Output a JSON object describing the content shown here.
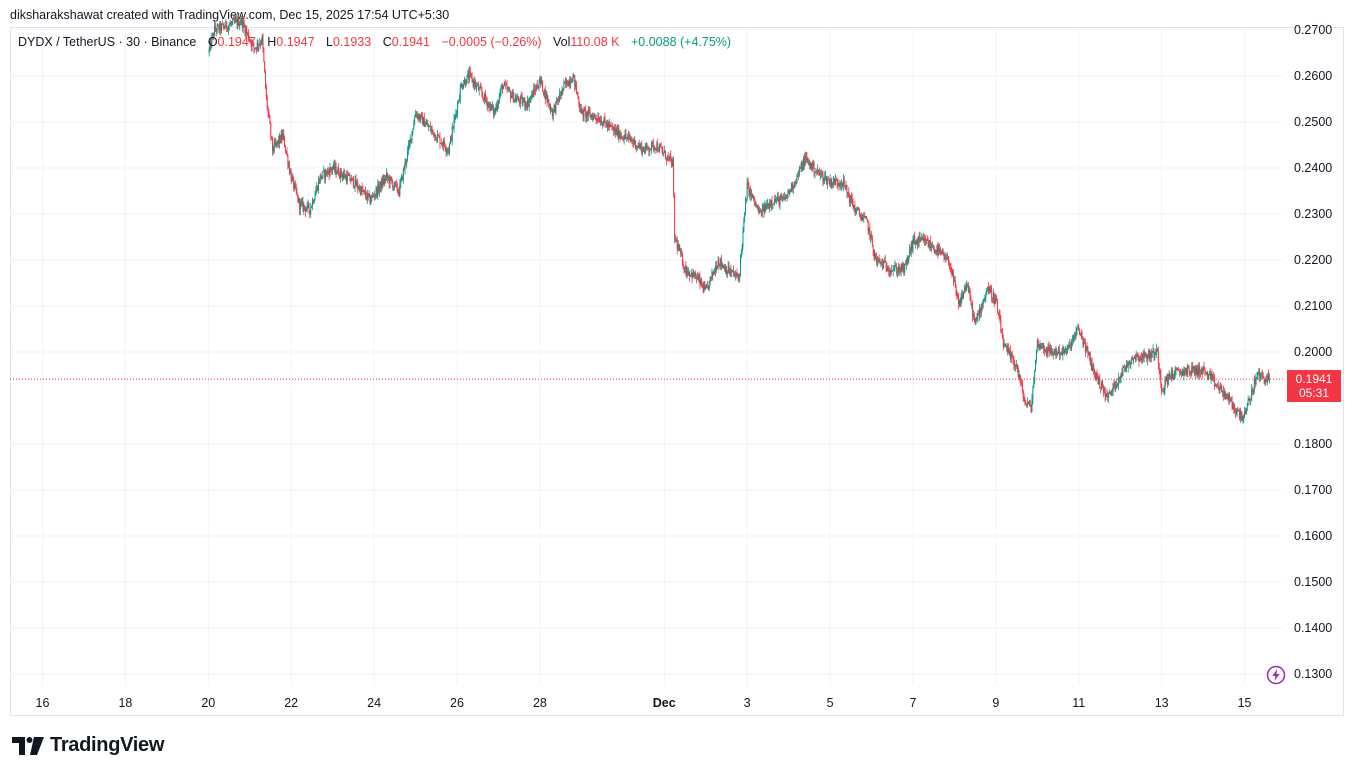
{
  "header": {
    "attribution": "diksharakshawat created with TradingView.com, Dec 15, 2025 17:54 UTC+5:30"
  },
  "legend": {
    "symbol": "DYDX / TetherUS · 30 · Binance",
    "open_label": "O",
    "open_value": "0.1947",
    "high_label": "H",
    "high_value": "0.1947",
    "low_label": "L",
    "low_value": "0.1933",
    "close_label": "C",
    "close_value": "0.1941",
    "change": "−0.0005 (−0.26%)",
    "vol_label": "Vol",
    "vol_value": "110.08 K",
    "vol_change": "+0.0088 (+4.75%)"
  },
  "price_tag": {
    "price": "0.1941",
    "countdown": "05:31"
  },
  "brand": {
    "name": "TradingView"
  },
  "colors": {
    "up": "#089981",
    "down": "#f23645",
    "grid": "#f0f3fa",
    "axis_text": "#131722",
    "last_price_line": "#f23645"
  },
  "chart_data": {
    "type": "candlestick",
    "title": "DYDX / TetherUS · 30 · Binance",
    "xlabel": "",
    "ylabel": "",
    "ylim": [
      0.1265,
      0.272
    ],
    "y_ticks": [
      "0.2700",
      "0.2600",
      "0.2500",
      "0.2400",
      "0.2300",
      "0.2200",
      "0.2100",
      "0.2000",
      "0.1800",
      "0.1700",
      "0.1600",
      "0.1500",
      "0.1400",
      "0.1300"
    ],
    "y_tick_values": [
      0.27,
      0.26,
      0.25,
      0.24,
      0.23,
      0.22,
      0.21,
      0.2,
      0.18,
      0.17,
      0.16,
      0.15,
      0.14,
      0.13
    ],
    "x_ticks": [
      "16",
      "18",
      "20",
      "22",
      "24",
      "26",
      "28",
      "Dec",
      "3",
      "5",
      "7",
      "9",
      "11",
      "13",
      "15"
    ],
    "x_tick_days": [
      0,
      2,
      4,
      6,
      8,
      10,
      12,
      15,
      17,
      19,
      21,
      23,
      25,
      27,
      29
    ],
    "x_range_days": [
      -0.8,
      30.0
    ],
    "last_price": 0.1941,
    "path_anchors_day_price": [
      [
        4.0,
        0.265
      ],
      [
        4.15,
        0.27
      ],
      [
        4.8,
        0.272
      ],
      [
        5.1,
        0.266
      ],
      [
        5.3,
        0.268
      ],
      [
        5.4,
        0.255
      ],
      [
        5.55,
        0.244
      ],
      [
        5.8,
        0.247
      ],
      [
        6.0,
        0.238
      ],
      [
        6.2,
        0.232
      ],
      [
        6.45,
        0.231
      ],
      [
        6.7,
        0.238
      ],
      [
        7.0,
        0.24
      ],
      [
        7.5,
        0.237
      ],
      [
        7.9,
        0.233
      ],
      [
        8.3,
        0.238
      ],
      [
        8.6,
        0.235
      ],
      [
        8.85,
        0.245
      ],
      [
        9.0,
        0.252
      ],
      [
        9.4,
        0.248
      ],
      [
        9.8,
        0.244
      ],
      [
        10.1,
        0.258
      ],
      [
        10.3,
        0.26
      ],
      [
        10.6,
        0.256
      ],
      [
        10.9,
        0.252
      ],
      [
        11.1,
        0.258
      ],
      [
        11.4,
        0.255
      ],
      [
        11.7,
        0.254
      ],
      [
        12.0,
        0.259
      ],
      [
        12.3,
        0.252
      ],
      [
        12.6,
        0.258
      ],
      [
        12.8,
        0.26
      ],
      [
        13.0,
        0.252
      ],
      [
        13.4,
        0.251
      ],
      [
        13.8,
        0.248
      ],
      [
        14.2,
        0.246
      ],
      [
        14.5,
        0.244
      ],
      [
        14.8,
        0.245
      ],
      [
        15.2,
        0.241
      ],
      [
        15.25,
        0.225
      ],
      [
        15.5,
        0.218
      ],
      [
        15.8,
        0.216
      ],
      [
        16.0,
        0.213
      ],
      [
        16.3,
        0.22
      ],
      [
        16.5,
        0.218
      ],
      [
        16.8,
        0.216
      ],
      [
        16.9,
        0.226
      ],
      [
        17.0,
        0.236
      ],
      [
        17.3,
        0.23
      ],
      [
        17.6,
        0.233
      ],
      [
        17.9,
        0.233
      ],
      [
        18.2,
        0.238
      ],
      [
        18.4,
        0.242
      ],
      [
        18.7,
        0.239
      ],
      [
        19.0,
        0.237
      ],
      [
        19.3,
        0.237
      ],
      [
        19.6,
        0.231
      ],
      [
        19.9,
        0.228
      ],
      [
        20.1,
        0.22
      ],
      [
        20.5,
        0.218
      ],
      [
        20.8,
        0.218
      ],
      [
        21.0,
        0.224
      ],
      [
        21.3,
        0.224
      ],
      [
        21.6,
        0.222
      ],
      [
        21.9,
        0.219
      ],
      [
        22.1,
        0.21
      ],
      [
        22.3,
        0.215
      ],
      [
        22.5,
        0.206
      ],
      [
        22.8,
        0.214
      ],
      [
        23.0,
        0.211
      ],
      [
        23.2,
        0.201
      ],
      [
        23.5,
        0.197
      ],
      [
        23.7,
        0.189
      ],
      [
        23.85,
        0.188
      ],
      [
        24.0,
        0.202
      ],
      [
        24.3,
        0.2
      ],
      [
        24.7,
        0.2
      ],
      [
        25.0,
        0.205
      ],
      [
        25.2,
        0.2
      ],
      [
        25.4,
        0.195
      ],
      [
        25.7,
        0.19
      ],
      [
        26.0,
        0.195
      ],
      [
        26.3,
        0.199
      ],
      [
        26.6,
        0.199
      ],
      [
        26.9,
        0.2
      ],
      [
        27.0,
        0.192
      ],
      [
        27.2,
        0.195
      ],
      [
        27.6,
        0.196
      ],
      [
        28.0,
        0.196
      ],
      [
        28.3,
        0.193
      ],
      [
        28.6,
        0.19
      ],
      [
        28.8,
        0.187
      ],
      [
        29.0,
        0.186
      ],
      [
        29.3,
        0.195
      ],
      [
        29.6,
        0.194
      ]
    ]
  }
}
